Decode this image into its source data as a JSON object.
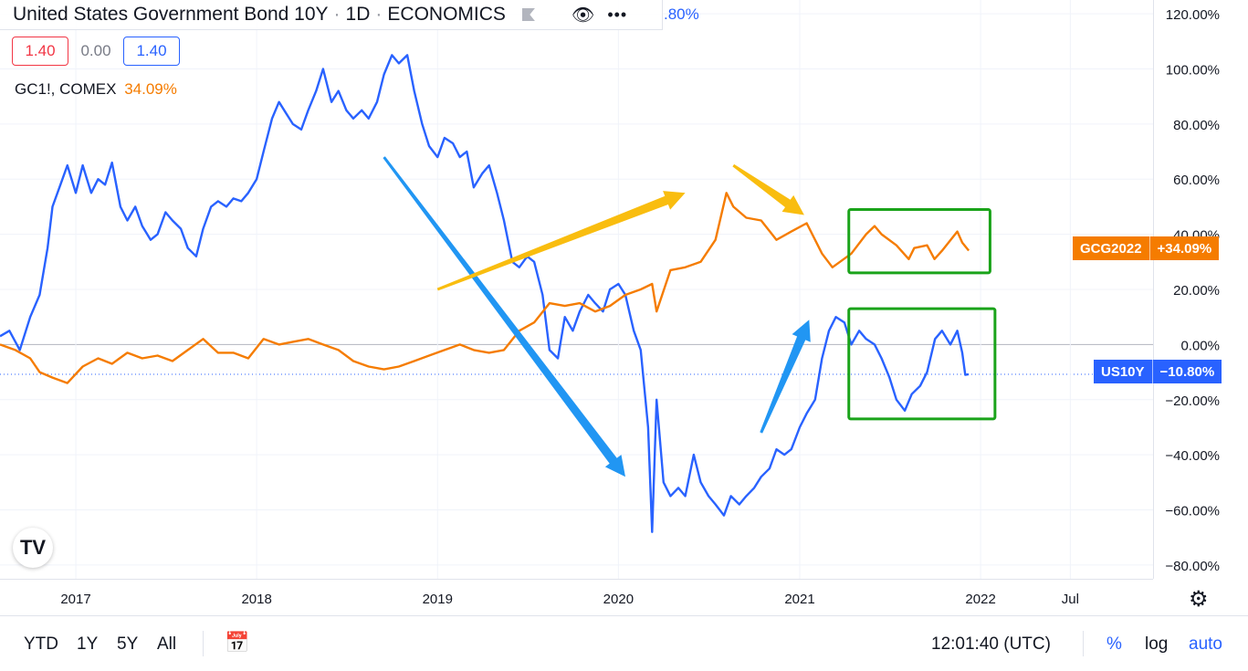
{
  "header": {
    "symbol_title": "United States Government Bond 10Y",
    "interval": "1D",
    "source": "ECONOMICS",
    "partial_value": ".80%"
  },
  "ohlc_pills": {
    "left": "1.40",
    "mid": "0.00",
    "right": "1.40"
  },
  "series_legend": {
    "symbol": "GC1!, COMEX",
    "value": "34.09%"
  },
  "badges": {
    "gold": {
      "label": "GCG2022",
      "value": "+34.09%",
      "color": "#f57c00"
    },
    "bond": {
      "label": "US10Y",
      "value": "−10.80%",
      "color": "#2962ff"
    }
  },
  "bottom_bar": {
    "ranges": [
      "YTD",
      "1Y",
      "5Y",
      "All"
    ],
    "time": "12:01:40 (UTC)",
    "pct": "%",
    "log": "log",
    "auto": "auto"
  },
  "icons": [
    "flag-icon",
    "eye-icon",
    "more-icon",
    "calendar-range-icon",
    "tradingview-logo-icon",
    "settings-gear-icon"
  ],
  "chart_data": {
    "type": "line",
    "y_unit": "%",
    "y_ticks": [
      "120.00%",
      "100.00%",
      "80.00%",
      "60.00%",
      "40.00%",
      "20.00%",
      "0.00%",
      "−20.00%",
      "−40.00%",
      "−60.00%",
      "−80.00%"
    ],
    "x_ticks": [
      "2017",
      "2018",
      "2019",
      "2020",
      "2021",
      "2022",
      "Jul"
    ],
    "ylim": [
      -85,
      125
    ],
    "xlim": [
      "2016-08-01",
      "2022-12-15"
    ],
    "grid": true,
    "series": [
      {
        "name": "US10Y",
        "color": "#2962ff",
        "points": [
          [
            "2016-08-01",
            3
          ],
          [
            "2016-08-20",
            5
          ],
          [
            "2016-09-10",
            -2
          ],
          [
            "2016-10-01",
            10
          ],
          [
            "2016-10-20",
            18
          ],
          [
            "2016-11-05",
            35
          ],
          [
            "2016-11-15",
            50
          ],
          [
            "2016-12-01",
            58
          ],
          [
            "2016-12-15",
            65
          ],
          [
            "2017-01-01",
            55
          ],
          [
            "2017-01-15",
            65
          ],
          [
            "2017-02-01",
            55
          ],
          [
            "2017-02-15",
            60
          ],
          [
            "2017-03-01",
            58
          ],
          [
            "2017-03-15",
            66
          ],
          [
            "2017-04-01",
            50
          ],
          [
            "2017-04-15",
            45
          ],
          [
            "2017-05-01",
            50
          ],
          [
            "2017-05-15",
            43
          ],
          [
            "2017-06-01",
            38
          ],
          [
            "2017-06-15",
            40
          ],
          [
            "2017-07-01",
            48
          ],
          [
            "2017-07-15",
            45
          ],
          [
            "2017-08-01",
            42
          ],
          [
            "2017-08-15",
            35
          ],
          [
            "2017-09-01",
            32
          ],
          [
            "2017-09-15",
            42
          ],
          [
            "2017-10-01",
            50
          ],
          [
            "2017-10-15",
            52
          ],
          [
            "2017-11-01",
            50
          ],
          [
            "2017-11-15",
            53
          ],
          [
            "2017-12-01",
            52
          ],
          [
            "2017-12-15",
            55
          ],
          [
            "2018-01-01",
            60
          ],
          [
            "2018-01-15",
            70
          ],
          [
            "2018-02-01",
            82
          ],
          [
            "2018-02-15",
            88
          ],
          [
            "2018-03-01",
            84
          ],
          [
            "2018-03-15",
            80
          ],
          [
            "2018-04-01",
            78
          ],
          [
            "2018-04-15",
            85
          ],
          [
            "2018-05-01",
            92
          ],
          [
            "2018-05-15",
            100
          ],
          [
            "2018-06-01",
            88
          ],
          [
            "2018-06-15",
            92
          ],
          [
            "2018-07-01",
            85
          ],
          [
            "2018-07-15",
            82
          ],
          [
            "2018-08-01",
            85
          ],
          [
            "2018-08-15",
            82
          ],
          [
            "2018-09-01",
            88
          ],
          [
            "2018-09-15",
            98
          ],
          [
            "2018-10-01",
            105
          ],
          [
            "2018-10-15",
            102
          ],
          [
            "2018-11-01",
            105
          ],
          [
            "2018-11-15",
            92
          ],
          [
            "2018-12-01",
            80
          ],
          [
            "2018-12-15",
            72
          ],
          [
            "2019-01-01",
            68
          ],
          [
            "2019-01-15",
            75
          ],
          [
            "2019-02-01",
            73
          ],
          [
            "2019-02-15",
            68
          ],
          [
            "2019-03-01",
            70
          ],
          [
            "2019-03-15",
            57
          ],
          [
            "2019-04-01",
            62
          ],
          [
            "2019-04-15",
            65
          ],
          [
            "2019-05-01",
            55
          ],
          [
            "2019-05-15",
            45
          ],
          [
            "2019-06-01",
            30
          ],
          [
            "2019-06-15",
            28
          ],
          [
            "2019-07-01",
            32
          ],
          [
            "2019-07-15",
            30
          ],
          [
            "2019-08-01",
            18
          ],
          [
            "2019-08-15",
            -2
          ],
          [
            "2019-09-01",
            -5
          ],
          [
            "2019-09-15",
            10
          ],
          [
            "2019-10-01",
            5
          ],
          [
            "2019-10-15",
            12
          ],
          [
            "2019-11-01",
            18
          ],
          [
            "2019-11-15",
            15
          ],
          [
            "2019-12-01",
            12
          ],
          [
            "2019-12-15",
            20
          ],
          [
            "2020-01-01",
            22
          ],
          [
            "2020-01-15",
            18
          ],
          [
            "2020-02-01",
            5
          ],
          [
            "2020-02-15",
            -2
          ],
          [
            "2020-03-01",
            -30
          ],
          [
            "2020-03-09",
            -68
          ],
          [
            "2020-03-18",
            -20
          ],
          [
            "2020-04-01",
            -50
          ],
          [
            "2020-04-15",
            -55
          ],
          [
            "2020-05-01",
            -52
          ],
          [
            "2020-05-15",
            -55
          ],
          [
            "2020-06-01",
            -40
          ],
          [
            "2020-06-15",
            -50
          ],
          [
            "2020-07-01",
            -55
          ],
          [
            "2020-07-15",
            -58
          ],
          [
            "2020-08-01",
            -62
          ],
          [
            "2020-08-15",
            -55
          ],
          [
            "2020-09-01",
            -58
          ],
          [
            "2020-09-15",
            -55
          ],
          [
            "2020-10-01",
            -52
          ],
          [
            "2020-10-15",
            -48
          ],
          [
            "2020-11-01",
            -45
          ],
          [
            "2020-11-15",
            -38
          ],
          [
            "2020-12-01",
            -40
          ],
          [
            "2020-12-15",
            -38
          ],
          [
            "2021-01-01",
            -30
          ],
          [
            "2021-01-15",
            -25
          ],
          [
            "2021-02-01",
            -20
          ],
          [
            "2021-02-15",
            -5
          ],
          [
            "2021-03-01",
            5
          ],
          [
            "2021-03-15",
            10
          ],
          [
            "2021-04-01",
            8
          ],
          [
            "2021-04-15",
            0
          ],
          [
            "2021-05-01",
            5
          ],
          [
            "2021-05-15",
            2
          ],
          [
            "2021-06-01",
            0
          ],
          [
            "2021-06-15",
            -5
          ],
          [
            "2021-07-01",
            -12
          ],
          [
            "2021-07-15",
            -20
          ],
          [
            "2021-08-01",
            -24
          ],
          [
            "2021-08-15",
            -18
          ],
          [
            "2021-09-01",
            -15
          ],
          [
            "2021-09-15",
            -10
          ],
          [
            "2021-10-01",
            2
          ],
          [
            "2021-10-15",
            5
          ],
          [
            "2021-11-01",
            0
          ],
          [
            "2021-11-15",
            5
          ],
          [
            "2021-11-25",
            -3
          ],
          [
            "2021-12-01",
            -11
          ],
          [
            "2021-12-08",
            -10.8
          ]
        ]
      },
      {
        "name": "GCG2022",
        "color": "#f57c00",
        "points": [
          [
            "2016-08-01",
            0
          ],
          [
            "2016-09-01",
            -2
          ],
          [
            "2016-10-01",
            -5
          ],
          [
            "2016-10-20",
            -10
          ],
          [
            "2016-11-15",
            -12
          ],
          [
            "2016-12-15",
            -14
          ],
          [
            "2017-01-15",
            -8
          ],
          [
            "2017-02-15",
            -5
          ],
          [
            "2017-03-15",
            -7
          ],
          [
            "2017-04-15",
            -3
          ],
          [
            "2017-05-15",
            -5
          ],
          [
            "2017-06-15",
            -4
          ],
          [
            "2017-07-15",
            -6
          ],
          [
            "2017-08-15",
            -2
          ],
          [
            "2017-09-15",
            2
          ],
          [
            "2017-10-15",
            -3
          ],
          [
            "2017-11-15",
            -3
          ],
          [
            "2017-12-15",
            -5
          ],
          [
            "2018-01-15",
            2
          ],
          [
            "2018-02-15",
            0
          ],
          [
            "2018-03-15",
            1
          ],
          [
            "2018-04-15",
            2
          ],
          [
            "2018-05-15",
            0
          ],
          [
            "2018-06-15",
            -2
          ],
          [
            "2018-07-15",
            -6
          ],
          [
            "2018-08-15",
            -8
          ],
          [
            "2018-09-15",
            -9
          ],
          [
            "2018-10-15",
            -8
          ],
          [
            "2018-11-15",
            -6
          ],
          [
            "2018-12-15",
            -4
          ],
          [
            "2019-01-15",
            -2
          ],
          [
            "2019-02-15",
            0
          ],
          [
            "2019-03-15",
            -2
          ],
          [
            "2019-04-15",
            -3
          ],
          [
            "2019-05-15",
            -2
          ],
          [
            "2019-06-15",
            5
          ],
          [
            "2019-07-15",
            8
          ],
          [
            "2019-08-15",
            15
          ],
          [
            "2019-09-15",
            14
          ],
          [
            "2019-10-15",
            15
          ],
          [
            "2019-11-15",
            12
          ],
          [
            "2019-12-15",
            14
          ],
          [
            "2020-01-15",
            18
          ],
          [
            "2020-02-15",
            20
          ],
          [
            "2020-03-09",
            22
          ],
          [
            "2020-03-18",
            12
          ],
          [
            "2020-04-15",
            27
          ],
          [
            "2020-05-15",
            28
          ],
          [
            "2020-06-15",
            30
          ],
          [
            "2020-07-15",
            38
          ],
          [
            "2020-08-06",
            55
          ],
          [
            "2020-08-20",
            50
          ],
          [
            "2020-09-15",
            46
          ],
          [
            "2020-10-15",
            45
          ],
          [
            "2020-11-15",
            38
          ],
          [
            "2020-12-15",
            41
          ],
          [
            "2021-01-15",
            44
          ],
          [
            "2021-02-15",
            33
          ],
          [
            "2021-03-08",
            28
          ],
          [
            "2021-04-15",
            33
          ],
          [
            "2021-05-15",
            40
          ],
          [
            "2021-06-01",
            43
          ],
          [
            "2021-06-15",
            40
          ],
          [
            "2021-07-15",
            36
          ],
          [
            "2021-08-09",
            31
          ],
          [
            "2021-08-20",
            35
          ],
          [
            "2021-09-15",
            36
          ],
          [
            "2021-09-30",
            31
          ],
          [
            "2021-10-15",
            34
          ],
          [
            "2021-11-15",
            41
          ],
          [
            "2021-11-25",
            37
          ],
          [
            "2021-12-08",
            34.09
          ]
        ]
      }
    ],
    "annotations": {
      "arrows": [
        {
          "color": "#2196f3",
          "from": [
            "2018-09-15",
            68
          ],
          "to": [
            "2020-01-15",
            -48
          ]
        },
        {
          "color": "#2196f3",
          "from": [
            "2020-10-15",
            -32
          ],
          "to": [
            "2021-01-20",
            9
          ]
        },
        {
          "color": "#f9bd0f",
          "from": [
            "2019-01-01",
            20
          ],
          "to": [
            "2020-05-15",
            55
          ]
        },
        {
          "color": "#f9bd0f",
          "from": [
            "2020-08-20",
            65
          ],
          "to": [
            "2021-01-10",
            47
          ]
        }
      ],
      "boxes": [
        {
          "color": "#1aa31a",
          "from": [
            "2021-04-10",
            26
          ],
          "to": [
            "2022-01-20",
            49
          ]
        },
        {
          "color": "#1aa31a",
          "from": [
            "2021-04-10",
            -27
          ],
          "to": [
            "2022-01-30",
            13
          ]
        }
      ]
    }
  }
}
